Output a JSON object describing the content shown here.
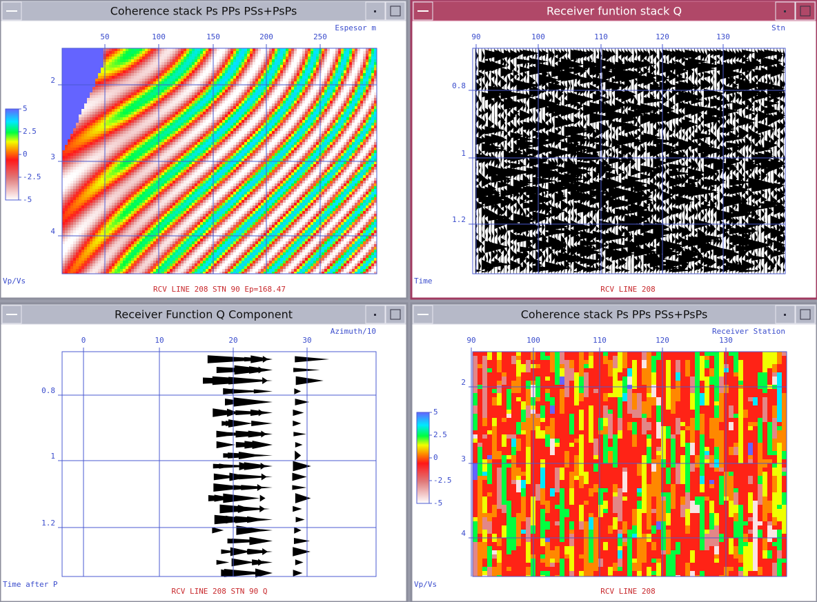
{
  "windows": [
    {
      "title": "Coherence stack Ps PPs PSs+PsPs",
      "x_axis_label": "Espesor m",
      "x_ticks": [
        "50",
        "100",
        "150",
        "200",
        "250"
      ],
      "y_axis_label": "Vp/Vs",
      "y_ticks": [
        "2",
        "3",
        "4"
      ],
      "colorbar_ticks": [
        "5",
        "2.5",
        "0",
        "-2.5",
        "-5"
      ],
      "caption": "RCV LINE 208 STN 90 Ep=168.47"
    },
    {
      "title": "Receiver funtion stack Q",
      "x_axis_label": "Stn",
      "x_ticks": [
        "90",
        "100",
        "110",
        "120",
        "130"
      ],
      "y_axis_label": "Time",
      "y_ticks": [
        "0.8",
        "1",
        "1.2"
      ],
      "caption": "RCV LINE 208"
    },
    {
      "title": "Receiver Function Q Component",
      "x_axis_label": "Azimuth/10",
      "x_ticks": [
        "0",
        "10",
        "20",
        "30"
      ],
      "y_axis_label": "Time after P",
      "y_ticks": [
        "0.8",
        "1",
        "1.2"
      ],
      "caption": "RCV LINE 208 STN 90 Q"
    },
    {
      "title": "Coherence stack Ps PPs PSs+PsPs",
      "x_axis_label": "Receiver Station",
      "x_ticks": [
        "90",
        "100",
        "110",
        "120",
        "130"
      ],
      "y_axis_label": "Vp/Vs",
      "y_ticks": [
        "2",
        "3",
        "4"
      ],
      "colorbar_ticks": [
        "5",
        "2.5",
        "0",
        "-2.5",
        "-5"
      ],
      "caption": "RCV LINE 208"
    }
  ]
}
